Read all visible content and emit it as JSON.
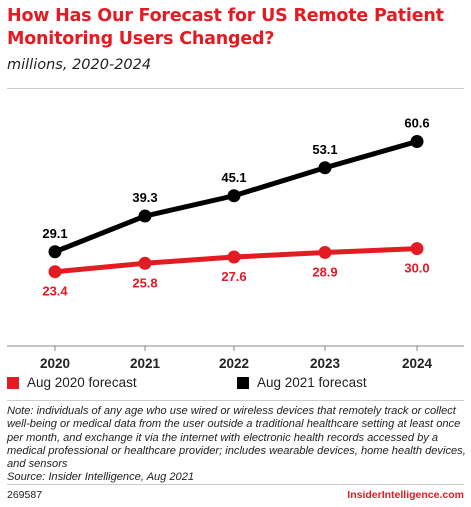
{
  "colors": {
    "accent": "#e31b23",
    "series_2021": "#000000",
    "series_2020": "#e31b23"
  },
  "header": {
    "title": "How Has Our Forecast for US Remote Patient Monitoring Users Changed?",
    "subtitle": "millions, 2020-2024"
  },
  "chart_data": {
    "type": "line",
    "categories": [
      "2020",
      "2021",
      "2022",
      "2023",
      "2024"
    ],
    "title": "How Has Our Forecast for US Remote Patient Monitoring Users Changed?",
    "subtitle": "millions, 2020-2024",
    "xlabel": "",
    "ylabel": "",
    "ylim": [
      0,
      65
    ],
    "grid": false,
    "legend_position": "bottom",
    "series": [
      {
        "name": "Aug 2020 forecast",
        "color": "#e31b23",
        "values": [
          23.4,
          25.8,
          27.6,
          28.9,
          30.0
        ],
        "labels": [
          "23.4",
          "25.8",
          "27.6",
          "28.9",
          "30.0"
        ],
        "label_side": "below"
      },
      {
        "name": "Aug 2021 forecast",
        "color": "#000000",
        "values": [
          29.1,
          39.3,
          45.1,
          53.1,
          60.6
        ],
        "labels": [
          "29.1",
          "39.3",
          "45.1",
          "53.1",
          "60.6"
        ],
        "label_side": "above"
      }
    ]
  },
  "note": "Note: individuals of any age who use wired or wireless devices that remotely track or collect well-being or medical data from the user outside a traditional healthcare setting at least once per month, and exchange it via the internet with electronic health records accessed by a medical professional or healthcare provider; includes wearable devices, home health devices, and sensors",
  "source": "Source: Insider Intelligence, Aug 2021",
  "footer": {
    "chart_id": "269587",
    "brand": "InsiderIntelligence.com"
  }
}
